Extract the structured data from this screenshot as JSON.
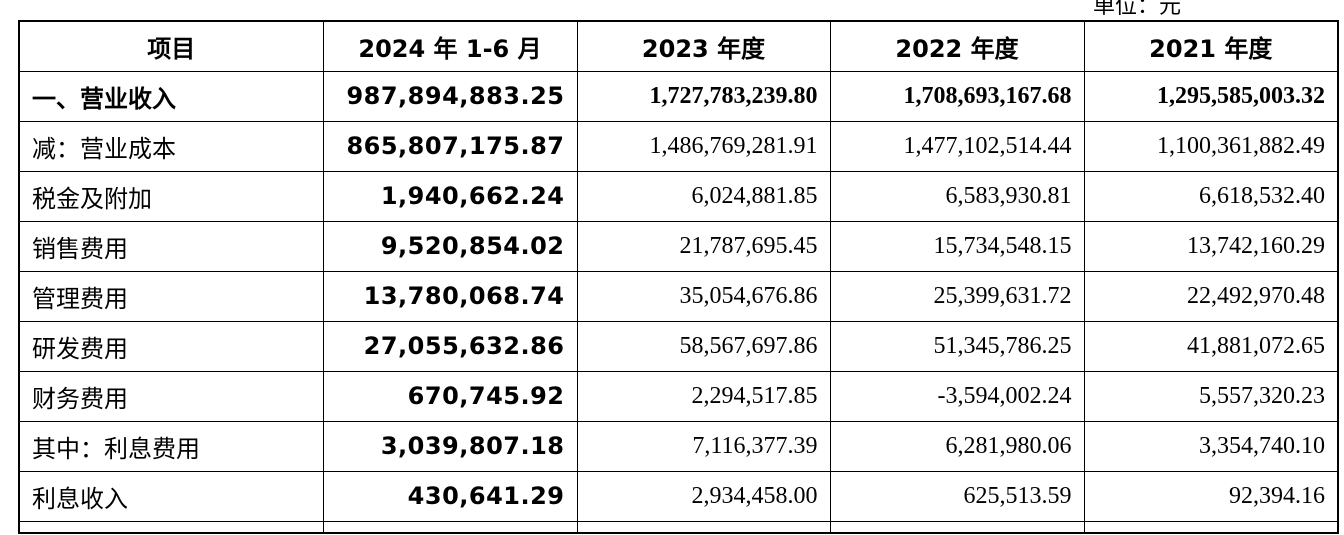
{
  "unit_label": "单位：元",
  "table": {
    "headers": [
      "项目",
      "2024 年 1-6 月",
      "2023 年度",
      "2022 年度",
      "2021 年度"
    ],
    "rows": [
      {
        "label": "一、营业收入",
        "v2024h1": "987,894,883.25",
        "v2023": "1,727,783,239.80",
        "v2022": "1,708,693,167.68",
        "v2021": "1,295,585,003.32"
      },
      {
        "label": "减：营业成本",
        "v2024h1": "865,807,175.87",
        "v2023": "1,486,769,281.91",
        "v2022": "1,477,102,514.44",
        "v2021": "1,100,361,882.49"
      },
      {
        "label": "税金及附加",
        "v2024h1": "1,940,662.24",
        "v2023": "6,024,881.85",
        "v2022": "6,583,930.81",
        "v2021": "6,618,532.40"
      },
      {
        "label": "销售费用",
        "v2024h1": "9,520,854.02",
        "v2023": "21,787,695.45",
        "v2022": "15,734,548.15",
        "v2021": "13,742,160.29"
      },
      {
        "label": "管理费用",
        "v2024h1": "13,780,068.74",
        "v2023": "35,054,676.86",
        "v2022": "25,399,631.72",
        "v2021": "22,492,970.48"
      },
      {
        "label": "研发费用",
        "v2024h1": "27,055,632.86",
        "v2023": "58,567,697.86",
        "v2022": "51,345,786.25",
        "v2021": "41,881,072.65"
      },
      {
        "label": "财务费用",
        "v2024h1": "670,745.92",
        "v2023": "2,294,517.85",
        "v2022": "-3,594,002.24",
        "v2021": "5,557,320.23"
      },
      {
        "label": "其中：利息费用",
        "v2024h1": "3,039,807.18",
        "v2023": "7,116,377.39",
        "v2022": "6,281,980.06",
        "v2021": "3,354,740.10"
      },
      {
        "label": "利息收入",
        "v2024h1": "430,641.29",
        "v2023": "2,934,458.00",
        "v2022": "625,513.59",
        "v2021": "92,394.16"
      }
    ]
  }
}
